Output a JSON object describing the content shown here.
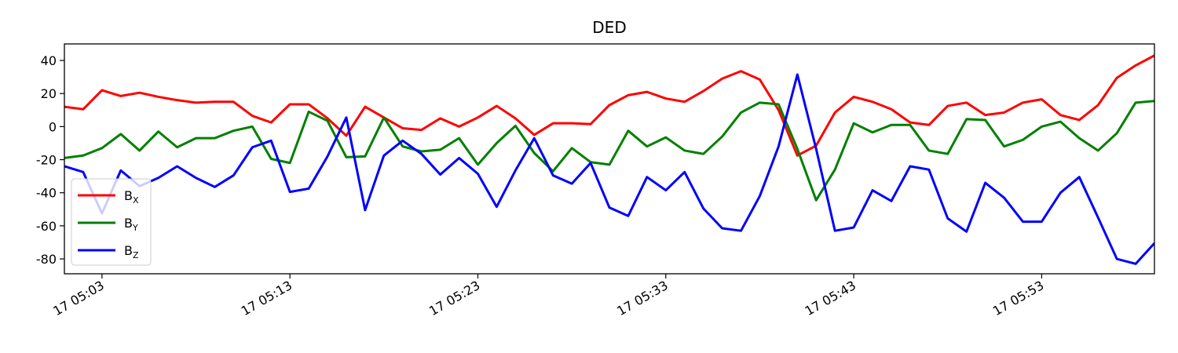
{
  "chart_data": {
    "type": "line",
    "title": "DED",
    "xlabel": "",
    "ylabel": "",
    "x_start": "17 05:01",
    "x_end": "17 05:59",
    "x_step_minutes": 1,
    "xlim": [
      "17 05:01",
      "17 05:59"
    ],
    "ylim": [
      -89,
      50
    ],
    "x_ticks": [
      "17 05:03",
      "17 05:13",
      "17 05:23",
      "17 05:33",
      "17 05:43",
      "17 05:53"
    ],
    "y_ticks": [
      40,
      20,
      0,
      -20,
      -40,
      -60,
      -80
    ],
    "legend_position": "lower-left",
    "grid": false,
    "series": [
      {
        "name": "B",
        "subscript": "X",
        "color": "#ff0000",
        "values": [
          12,
          10.5,
          22,
          18.5,
          20.5,
          18,
          16,
          14.5,
          15,
          15,
          6.5,
          2.5,
          13.5,
          13.5,
          5,
          -5.5,
          12,
          5.5,
          -1,
          -2,
          5,
          0,
          5.5,
          12.5,
          5,
          -5,
          2,
          2,
          1.5,
          13,
          19,
          21,
          17,
          15,
          21.5,
          29,
          33.5,
          28.5,
          10,
          -17.5,
          -11.5,
          8.5,
          18,
          15,
          10.5,
          2.5,
          1,
          12.5,
          14.5,
          7,
          8.5,
          14.5,
          16.5,
          7,
          4,
          13,
          29.5,
          37,
          43
        ]
      },
      {
        "name": "B",
        "subscript": "Y",
        "color": "#008000",
        "values": [
          -19,
          -17.5,
          -13,
          -4.5,
          -14.5,
          -3,
          -12.5,
          -7,
          -7,
          -2.5,
          0,
          -19.5,
          -22,
          9,
          3.5,
          -18.5,
          -18,
          5.5,
          -12,
          -15,
          -14,
          -7,
          -23,
          -10,
          0.5,
          -16,
          -27,
          -13,
          -21.5,
          -23,
          -2.5,
          -12,
          -6.5,
          -14.5,
          -16.5,
          -6,
          8.5,
          14.5,
          13.5,
          -13.5,
          -44.5,
          -26,
          2,
          -3.5,
          1,
          1,
          -14.5,
          -16.5,
          4.5,
          4,
          -12,
          -8,
          0,
          3,
          -7,
          -14.5,
          -4,
          14.5,
          15.5
        ]
      },
      {
        "name": "B",
        "subscript": "Z",
        "color": "#0000ff",
        "values": [
          -24,
          -27.5,
          -52.5,
          -26.5,
          -36,
          -31,
          -24,
          -31,
          -36.5,
          -29.5,
          -12.5,
          -8.5,
          -39.5,
          -37.5,
          -18,
          5.5,
          -50.5,
          -17.5,
          -8.5,
          -16.5,
          -29,
          -19,
          -28.5,
          -48.5,
          -26.5,
          -7,
          -29.5,
          -34.5,
          -22,
          -49,
          -54,
          -30.5,
          -38.5,
          -27.5,
          -49.5,
          -61.5,
          -63,
          -42,
          -12,
          31.5,
          -13.5,
          -63,
          -61,
          -38.5,
          -45,
          -24,
          -26,
          -55.5,
          -63.5,
          -34,
          -43,
          -57.5,
          -57.5,
          -40,
          -30.5,
          -55,
          -80,
          -83,
          -70.5
        ]
      }
    ]
  }
}
